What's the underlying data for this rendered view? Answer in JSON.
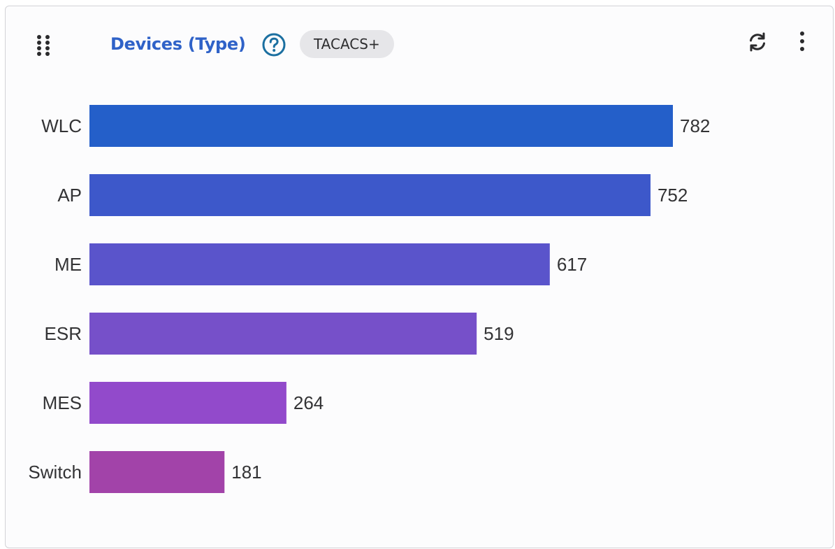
{
  "header": {
    "title": "Devices (Type)",
    "badge": "TACACS+",
    "icons": {
      "drag": "drag-handle-icon",
      "help": "help-circle-icon",
      "refresh": "refresh-icon",
      "more": "more-vertical-icon"
    },
    "title_color": "#2f62c8",
    "help_color": "#1b6fa0"
  },
  "chart_data": {
    "type": "bar",
    "orientation": "horizontal",
    "categories": [
      "WLC",
      "AP",
      "ME",
      "ESR",
      "MES",
      "Switch"
    ],
    "values": [
      782,
      752,
      617,
      519,
      264,
      181
    ],
    "colors": [
      "#245fc9",
      "#3d58ca",
      "#5a54cb",
      "#7650c9",
      "#924acb",
      "#a243a9"
    ],
    "title": "",
    "xlabel": "",
    "ylabel": "",
    "xlim": [
      0,
      782
    ],
    "grid": false,
    "legend": "none",
    "data_labels": true
  }
}
